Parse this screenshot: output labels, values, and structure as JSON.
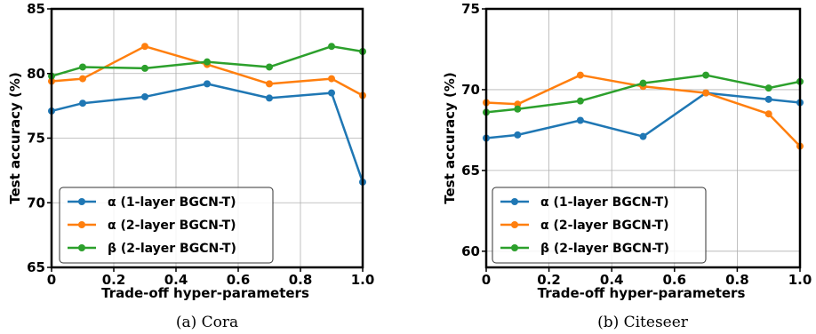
{
  "chart_data": [
    {
      "type": "line",
      "caption": "(a) Cora",
      "xlabel": "Trade-off hyper-parameters",
      "ylabel": "Test accuracy (%)",
      "xlim": [
        0,
        1.0
      ],
      "ylim": [
        65,
        85
      ],
      "xticks": [
        "0",
        "0.2",
        "0.4",
        "0.6",
        "0.8",
        "1.0"
      ],
      "yticks": [
        "65",
        "70",
        "75",
        "80",
        "85"
      ],
      "grid": true,
      "legend_position": "lower-left",
      "series": [
        {
          "name": "α (1-layer BGCN-T)",
          "color": "#1f77b4",
          "x": [
            0,
            0.1,
            0.3,
            0.5,
            0.7,
            0.9,
            1.0
          ],
          "y": [
            77.1,
            77.7,
            78.2,
            79.2,
            78.1,
            78.5,
            71.6
          ]
        },
        {
          "name": "α (2-layer BGCN-T)",
          "color": "#ff7f0e",
          "x": [
            0,
            0.1,
            0.3,
            0.5,
            0.7,
            0.9,
            1.0
          ],
          "y": [
            79.4,
            79.6,
            82.1,
            80.7,
            79.2,
            79.6,
            78.3
          ]
        },
        {
          "name": "β (2-layer BGCN-T)",
          "color": "#2ca02c",
          "x": [
            0,
            0.1,
            0.3,
            0.5,
            0.7,
            0.9,
            1.0
          ],
          "y": [
            79.8,
            80.5,
            80.4,
            80.9,
            80.5,
            82.1,
            81.7
          ]
        }
      ]
    },
    {
      "type": "line",
      "caption": "(b) Citeseer",
      "xlabel": "Trade-off hyper-parameters",
      "ylabel": "Test accuracy (%)",
      "xlim": [
        0,
        1.0
      ],
      "ylim": [
        59,
        75
      ],
      "xticks": [
        "0",
        "0.2",
        "0.4",
        "0.6",
        "0.8",
        "1.0"
      ],
      "yticks": [
        "60",
        "65",
        "70",
        "75"
      ],
      "grid": true,
      "legend_position": "lower-left",
      "series": [
        {
          "name": "α (1-layer BGCN-T)",
          "color": "#1f77b4",
          "x": [
            0,
            0.1,
            0.3,
            0.5,
            0.7,
            0.9,
            1.0
          ],
          "y": [
            67.0,
            67.2,
            68.1,
            67.1,
            69.8,
            69.4,
            69.2
          ]
        },
        {
          "name": "α (2-layer BGCN-T)",
          "color": "#ff7f0e",
          "x": [
            0,
            0.1,
            0.3,
            0.5,
            0.7,
            0.9,
            1.0
          ],
          "y": [
            69.2,
            69.1,
            70.9,
            70.2,
            69.8,
            68.5,
            66.5
          ]
        },
        {
          "name": "β (2-layer BGCN-T)",
          "color": "#2ca02c",
          "x": [
            0,
            0.1,
            0.3,
            0.5,
            0.7,
            0.9,
            1.0
          ],
          "y": [
            68.6,
            68.8,
            69.3,
            70.4,
            70.9,
            70.1,
            70.5
          ]
        }
      ]
    }
  ]
}
